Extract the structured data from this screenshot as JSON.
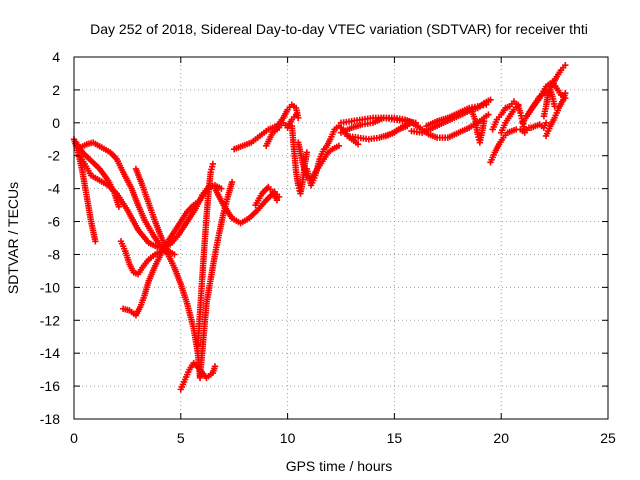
{
  "chart_data": {
    "type": "scatter",
    "title": "Day 252 of 2018, Sidereal Day-to-day VTEC variation (SDTVAR) for receiver thti",
    "xlabel": "GPS time / hours",
    "ylabel": "SDTVAR / TECUs",
    "xlim": [
      0,
      25
    ],
    "ylim": [
      -18,
      4
    ],
    "xticks": [
      0,
      5,
      10,
      15,
      20,
      25
    ],
    "yticks": [
      -18,
      -16,
      -14,
      -12,
      -10,
      -8,
      -6,
      -4,
      -2,
      0,
      2,
      4
    ],
    "grid": true,
    "marker": "+",
    "colors": {
      "series": "#ff0000",
      "grid": "#a0a0a0",
      "axis": "#000000"
    },
    "series": [
      {
        "points": [
          [
            0.0,
            -1.0
          ],
          [
            0.2,
            -1.8
          ],
          [
            0.4,
            -3.0
          ],
          [
            0.6,
            -4.5
          ],
          [
            0.8,
            -6.0
          ],
          [
            1.0,
            -7.2
          ]
        ]
      },
      {
        "points": [
          [
            0.1,
            -1.2
          ],
          [
            0.4,
            -1.8
          ],
          [
            0.8,
            -2.3
          ],
          [
            1.2,
            -2.8
          ],
          [
            1.6,
            -3.5
          ],
          [
            1.9,
            -4.3
          ],
          [
            2.1,
            -5.1
          ]
        ]
      },
      {
        "points": [
          [
            0.3,
            -1.5
          ],
          [
            0.6,
            -1.3
          ],
          [
            0.9,
            -1.2
          ],
          [
            1.3,
            -1.5
          ],
          [
            1.7,
            -1.8
          ],
          [
            2.0,
            -2.2
          ],
          [
            2.3,
            -3.0
          ],
          [
            2.7,
            -4.0
          ],
          [
            3.0,
            -5.0
          ],
          [
            3.3,
            -5.9
          ],
          [
            3.7,
            -6.8
          ],
          [
            4.0,
            -7.4
          ],
          [
            4.4,
            -8.0
          ],
          [
            4.7,
            -8.8
          ],
          [
            5.0,
            -9.8
          ],
          [
            5.3,
            -11.0
          ],
          [
            5.6,
            -12.5
          ],
          [
            5.8,
            -14.0
          ],
          [
            5.9,
            -15.5
          ]
        ]
      },
      {
        "points": [
          [
            0.2,
            -1.8
          ],
          [
            0.5,
            -2.5
          ],
          [
            0.8,
            -3.2
          ],
          [
            1.2,
            -3.5
          ],
          [
            1.6,
            -3.8
          ],
          [
            2.0,
            -4.3
          ],
          [
            2.5,
            -5.3
          ],
          [
            3.0,
            -6.5
          ],
          [
            3.5,
            -7.3
          ],
          [
            4.0,
            -7.6
          ],
          [
            4.5,
            -7.4
          ],
          [
            4.9,
            -6.8
          ],
          [
            5.3,
            -6.0
          ],
          [
            5.7,
            -5.2
          ],
          [
            6.0,
            -4.4
          ],
          [
            6.3,
            -3.9
          ],
          [
            6.6,
            -3.8
          ],
          [
            6.9,
            -4.0
          ]
        ]
      },
      {
        "points": [
          [
            2.2,
            -7.2
          ],
          [
            2.4,
            -7.8
          ],
          [
            2.6,
            -8.6
          ],
          [
            2.8,
            -9.1
          ],
          [
            3.0,
            -9.2
          ],
          [
            3.2,
            -8.8
          ],
          [
            3.5,
            -8.3
          ],
          [
            3.8,
            -8.0
          ],
          [
            4.1,
            -7.8
          ],
          [
            4.4,
            -7.8
          ],
          [
            4.7,
            -8.0
          ]
        ]
      },
      {
        "points": [
          [
            2.3,
            -11.3
          ],
          [
            2.6,
            -11.4
          ],
          [
            2.9,
            -11.7
          ],
          [
            3.1,
            -11.2
          ],
          [
            3.3,
            -10.5
          ],
          [
            3.5,
            -9.6
          ],
          [
            3.8,
            -8.7
          ],
          [
            4.1,
            -7.9
          ],
          [
            4.4,
            -7.2
          ],
          [
            4.7,
            -6.6
          ],
          [
            5.0,
            -6.0
          ],
          [
            5.3,
            -5.4
          ],
          [
            5.6,
            -5.0
          ],
          [
            5.9,
            -4.7
          ],
          [
            6.1,
            -4.3
          ],
          [
            6.3,
            -3.9
          ]
        ]
      },
      {
        "points": [
          [
            2.9,
            -2.8
          ],
          [
            3.2,
            -3.8
          ],
          [
            3.5,
            -4.9
          ],
          [
            3.8,
            -6.0
          ],
          [
            4.1,
            -7.0
          ],
          [
            4.4,
            -7.8
          ]
        ]
      },
      {
        "points": [
          [
            5.0,
            -16.2
          ],
          [
            5.2,
            -15.6
          ],
          [
            5.4,
            -15.0
          ],
          [
            5.6,
            -14.6
          ],
          [
            5.9,
            -15.0
          ],
          [
            6.2,
            -15.5
          ],
          [
            6.5,
            -15.2
          ],
          [
            6.6,
            -14.8
          ]
        ]
      },
      {
        "points": [
          [
            5.9,
            -15.4
          ],
          [
            6.0,
            -14.0
          ],
          [
            6.1,
            -12.5
          ],
          [
            6.2,
            -11.0
          ],
          [
            6.4,
            -9.5
          ],
          [
            6.6,
            -8.0
          ],
          [
            6.8,
            -6.7
          ],
          [
            7.0,
            -5.5
          ],
          [
            7.2,
            -4.5
          ],
          [
            7.4,
            -3.6
          ]
        ]
      },
      {
        "points": [
          [
            5.8,
            -13.5
          ],
          [
            5.9,
            -11.5
          ],
          [
            6.0,
            -9.5
          ],
          [
            6.1,
            -7.6
          ],
          [
            6.2,
            -5.8
          ],
          [
            6.3,
            -4.2
          ],
          [
            6.4,
            -3.0
          ],
          [
            6.5,
            -2.5
          ]
        ]
      },
      {
        "points": [
          [
            6.6,
            -4.0
          ],
          [
            7.0,
            -5.0
          ],
          [
            7.4,
            -5.8
          ],
          [
            7.8,
            -6.1
          ],
          [
            8.2,
            -5.8
          ],
          [
            8.6,
            -5.3
          ],
          [
            9.0,
            -4.7
          ],
          [
            9.4,
            -4.2
          ],
          [
            9.6,
            -4.5
          ]
        ]
      },
      {
        "points": [
          [
            8.5,
            -5.0
          ],
          [
            8.8,
            -4.3
          ],
          [
            9.1,
            -3.9
          ],
          [
            9.3,
            -4.2
          ],
          [
            9.5,
            -4.7
          ]
        ]
      },
      {
        "points": [
          [
            7.5,
            -1.6
          ],
          [
            7.9,
            -1.4
          ],
          [
            8.3,
            -1.2
          ],
          [
            8.7,
            -0.8
          ],
          [
            9.1,
            -0.4
          ],
          [
            9.5,
            -0.2
          ],
          [
            9.8,
            0.3
          ],
          [
            10.0,
            0.8
          ],
          [
            10.2,
            1.1
          ],
          [
            10.4,
            0.9
          ],
          [
            10.5,
            0.3
          ]
        ]
      },
      {
        "points": [
          [
            9.0,
            -1.4
          ],
          [
            9.3,
            -0.6
          ],
          [
            9.6,
            -0.3
          ],
          [
            9.8,
            0.0
          ],
          [
            10.0,
            -0.3
          ],
          [
            10.2,
            0.2
          ],
          [
            10.4,
            0.5
          ]
        ]
      },
      {
        "points": [
          [
            10.2,
            -0.2
          ],
          [
            10.3,
            -1.6
          ],
          [
            10.4,
            -3.0
          ],
          [
            10.5,
            -3.8
          ],
          [
            10.6,
            -4.3
          ],
          [
            10.7,
            -3.6
          ],
          [
            10.8,
            -2.6
          ],
          [
            10.9,
            -1.8
          ]
        ]
      },
      {
        "points": [
          [
            10.5,
            -1.2
          ],
          [
            10.7,
            -2.4
          ],
          [
            10.9,
            -3.3
          ],
          [
            11.1,
            -3.4
          ],
          [
            11.3,
            -3.0
          ],
          [
            11.5,
            -2.6
          ],
          [
            11.7,
            -2.2
          ],
          [
            11.9,
            -1.8
          ],
          [
            12.1,
            -1.6
          ],
          [
            12.4,
            -1.4
          ]
        ]
      },
      {
        "points": [
          [
            10.9,
            -2.8
          ],
          [
            11.1,
            -3.8
          ],
          [
            11.3,
            -3.2
          ],
          [
            11.5,
            -2.2
          ],
          [
            11.7,
            -1.6
          ]
        ]
      },
      {
        "points": [
          [
            11.8,
            -1.5
          ],
          [
            12.0,
            -1.0
          ],
          [
            12.2,
            -0.4
          ],
          [
            12.4,
            -0.2
          ],
          [
            12.6,
            -0.4
          ],
          [
            12.8,
            -0.8
          ],
          [
            13.0,
            -1.0
          ],
          [
            13.3,
            -1.3
          ]
        ]
      },
      {
        "points": [
          [
            12.5,
            0.0
          ],
          [
            13.0,
            0.1
          ],
          [
            13.5,
            0.2
          ],
          [
            14.0,
            0.3
          ],
          [
            14.5,
            0.3
          ],
          [
            15.0,
            0.2
          ],
          [
            15.5,
            0.1
          ],
          [
            16.0,
            0.0
          ]
        ]
      },
      {
        "points": [
          [
            12.5,
            -0.6
          ],
          [
            13.0,
            -0.3
          ],
          [
            13.5,
            -0.1
          ],
          [
            14.0,
            0.0
          ],
          [
            14.5,
            0.3
          ],
          [
            15.0,
            0.3
          ],
          [
            15.5,
            0.2
          ],
          [
            15.9,
            0.0
          ]
        ]
      },
      {
        "points": [
          [
            12.8,
            -0.8
          ],
          [
            13.3,
            -0.9
          ],
          [
            13.8,
            -1.0
          ],
          [
            14.3,
            -0.9
          ],
          [
            14.8,
            -0.7
          ],
          [
            15.2,
            -0.4
          ],
          [
            15.6,
            -0.2
          ]
        ]
      },
      {
        "points": [
          [
            14.6,
            -0.8
          ],
          [
            15.0,
            -0.6
          ],
          [
            15.4,
            -0.2
          ],
          [
            15.8,
            0.0
          ],
          [
            16.2,
            -0.3
          ],
          [
            16.6,
            -0.7
          ],
          [
            17.0,
            -0.9
          ],
          [
            17.5,
            -0.9
          ],
          [
            18.0,
            -0.6
          ],
          [
            18.5,
            -0.3
          ],
          [
            19.0,
            0.1
          ],
          [
            19.4,
            0.5
          ]
        ]
      },
      {
        "points": [
          [
            15.8,
            -0.5
          ],
          [
            16.3,
            -0.6
          ],
          [
            16.8,
            -0.3
          ],
          [
            17.3,
            0.0
          ],
          [
            17.8,
            0.3
          ],
          [
            18.3,
            0.6
          ],
          [
            18.6,
            0.8
          ],
          [
            18.9,
            0.9
          ],
          [
            19.2,
            1.2
          ],
          [
            19.5,
            1.4
          ]
        ]
      },
      {
        "points": [
          [
            16.5,
            -0.2
          ],
          [
            17.0,
            0.1
          ],
          [
            17.5,
            0.3
          ],
          [
            18.0,
            0.6
          ],
          [
            18.5,
            0.9
          ],
          [
            18.9,
            1.0
          ],
          [
            19.3,
            1.1
          ]
        ]
      },
      {
        "points": [
          [
            18.6,
            0.8
          ],
          [
            18.8,
            0.1
          ],
          [
            18.9,
            -0.7
          ],
          [
            19.0,
            -1.2
          ],
          [
            19.1,
            -0.6
          ],
          [
            19.2,
            0.1
          ]
        ]
      },
      {
        "points": [
          [
            19.5,
            -2.4
          ],
          [
            19.7,
            -1.8
          ],
          [
            19.9,
            -1.3
          ],
          [
            20.1,
            -0.9
          ],
          [
            20.3,
            -0.6
          ],
          [
            20.5,
            -0.5
          ],
          [
            20.7,
            -0.4
          ],
          [
            20.9,
            -0.4
          ],
          [
            21.1,
            -0.6
          ],
          [
            21.3,
            -0.3
          ]
        ]
      },
      {
        "points": [
          [
            19.6,
            -0.4
          ],
          [
            19.8,
            0.2
          ],
          [
            20.0,
            0.5
          ],
          [
            20.2,
            0.9
          ],
          [
            20.4,
            1.0
          ],
          [
            20.6,
            1.3
          ],
          [
            20.8,
            1.0
          ],
          [
            20.9,
            0.6
          ],
          [
            21.0,
            0.1
          ],
          [
            21.1,
            -0.4
          ]
        ]
      },
      {
        "points": [
          [
            20.0,
            -0.6
          ],
          [
            20.2,
            0.0
          ],
          [
            20.4,
            0.4
          ],
          [
            20.6,
            0.8
          ],
          [
            20.8,
            1.1
          ]
        ]
      },
      {
        "points": [
          [
            21.0,
            0.0
          ],
          [
            21.2,
            0.4
          ],
          [
            21.4,
            0.8
          ],
          [
            21.6,
            1.2
          ],
          [
            21.8,
            1.6
          ],
          [
            22.0,
            1.8
          ],
          [
            22.2,
            1.9
          ],
          [
            22.4,
            2.3
          ],
          [
            22.6,
            2.8
          ],
          [
            22.8,
            3.2
          ],
          [
            23.0,
            3.5
          ]
        ]
      },
      {
        "points": [
          [
            21.2,
            0.4
          ],
          [
            21.5,
            1.0
          ],
          [
            21.8,
            1.5
          ],
          [
            22.1,
            2.2
          ],
          [
            22.4,
            2.5
          ],
          [
            22.6,
            2.1
          ],
          [
            22.8,
            1.7
          ],
          [
            23.0,
            1.5
          ]
        ]
      },
      {
        "points": [
          [
            21.4,
            -0.3
          ],
          [
            21.6,
            -0.2
          ],
          [
            21.8,
            -0.1
          ],
          [
            22.0,
            -0.3
          ],
          [
            22.1,
            0.0
          ]
        ]
      },
      {
        "points": [
          [
            22.1,
            -0.8
          ],
          [
            22.3,
            -0.2
          ],
          [
            22.5,
            0.3
          ],
          [
            22.7,
            0.9
          ],
          [
            22.9,
            1.4
          ],
          [
            23.0,
            1.8
          ]
        ]
      },
      {
        "points": [
          [
            22.0,
            0.4
          ],
          [
            22.1,
            1.0
          ],
          [
            22.2,
            1.8
          ],
          [
            22.3,
            2.0
          ],
          [
            22.4,
            1.6
          ],
          [
            22.5,
            1.0
          ]
        ]
      }
    ]
  }
}
